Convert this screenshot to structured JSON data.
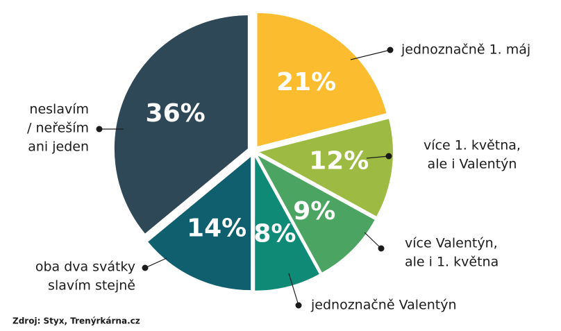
{
  "chart_data": {
    "type": "pie",
    "categories": [
      [
        "jednoznačně 1. máj"
      ],
      [
        "více 1. května,",
        "ale i Valentýn"
      ],
      [
        "více Valentýn,",
        "ale i 1. května"
      ],
      [
        "jednoznačně Valentýn"
      ],
      [
        "oba dva svátky",
        "slavím stejně"
      ],
      [
        "neslavím",
        "/ neřeším",
        "ani jeden"
      ]
    ],
    "values": [
      21,
      12,
      9,
      8,
      14,
      36
    ],
    "value_labels": [
      "21%",
      "12%",
      "9%",
      "8%",
      "14%",
      "36%"
    ],
    "colors": [
      "#fbbd2f",
      "#9dba43",
      "#4ba462",
      "#0e8a76",
      "#0f5f6e",
      "#2f4858"
    ],
    "source": "Zdroj: Styx, Trenýrkárna.cz"
  }
}
